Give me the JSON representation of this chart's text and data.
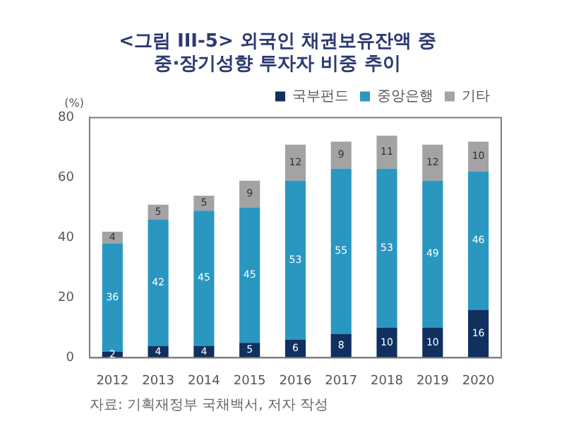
{
  "chart_data": {
    "type": "bar",
    "title": [
      "<그림 III-5> 외국인 채권보유잔액 중",
      "중·장기성향 투자자 비중 추이"
    ],
    "ylabel": "(%)",
    "annotations": [
      "자료: 기획재정부 국채백서, 저자 작성"
    ],
    "categories": [
      "2012",
      "2013",
      "2014",
      "2015",
      "2016",
      "2017",
      "2018",
      "2019",
      "2020"
    ],
    "series": [
      {
        "name": "국부펀드",
        "color": "#10305f",
        "values": [
          2,
          4,
          4,
          5,
          6,
          8,
          10,
          10,
          16
        ]
      },
      {
        "name": "중앙은행",
        "color": "#2a97c1",
        "values": [
          36,
          42,
          45,
          45,
          53,
          55,
          53,
          49,
          46
        ]
      },
      {
        "name": "기타",
        "color": "#a3a3a3",
        "values": [
          4,
          5,
          5,
          9,
          12,
          9,
          11,
          12,
          10
        ]
      }
    ],
    "stacked": true,
    "ylim": [
      0,
      80
    ],
    "yticks": [
      0,
      20,
      40,
      60,
      80
    ],
    "grid": false,
    "legend": "top right",
    "data_labels": true
  }
}
